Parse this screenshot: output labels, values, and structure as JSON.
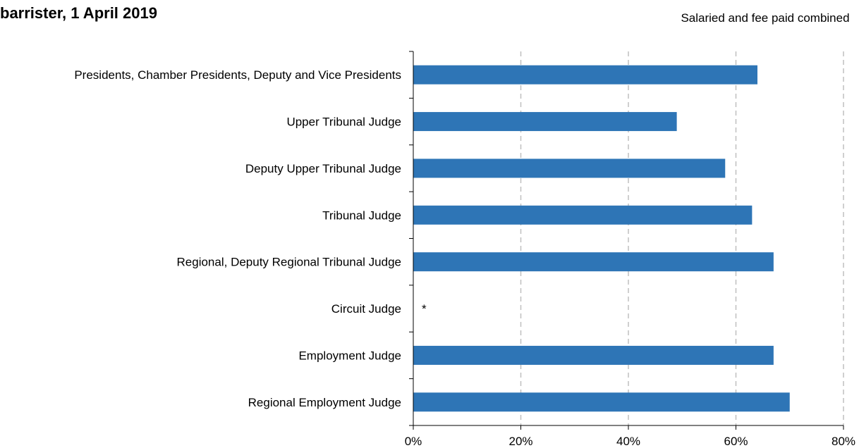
{
  "title": "barrister, 1 April 2019",
  "series_label": "Salaried and fee paid combined",
  "colors": {
    "bar": "#2E75B6",
    "grid": "#BFBFBF",
    "axis": "#000000"
  },
  "chart_data": {
    "type": "bar",
    "orientation": "horizontal",
    "title": "barrister, 1 April 2019",
    "xlabel": "",
    "ylabel": "",
    "xlim": [
      0,
      0.8
    ],
    "x_ticks": [
      0,
      0.2,
      0.4,
      0.6,
      0.8
    ],
    "x_tick_labels": [
      "0%",
      "20%",
      "40%",
      "60%",
      "80%"
    ],
    "grid": "vertical dashed",
    "categories": [
      "Presidents, Chamber Presidents, Deputy and Vice Presidents",
      "Upper Tribunal Judge",
      "Deputy Upper Tribunal Judge",
      "Tribunal Judge",
      "Regional, Deputy Regional Tribunal Judge",
      "Circuit Judge",
      "Employment Judge",
      "Regional Employment Judge"
    ],
    "series": [
      {
        "name": "Salaried and fee paid combined",
        "values": [
          0.64,
          0.49,
          0.58,
          0.63,
          0.67,
          null,
          0.67,
          0.7
        ]
      }
    ],
    "annotations": [
      {
        "category": "Circuit Judge",
        "text": "*"
      }
    ]
  }
}
